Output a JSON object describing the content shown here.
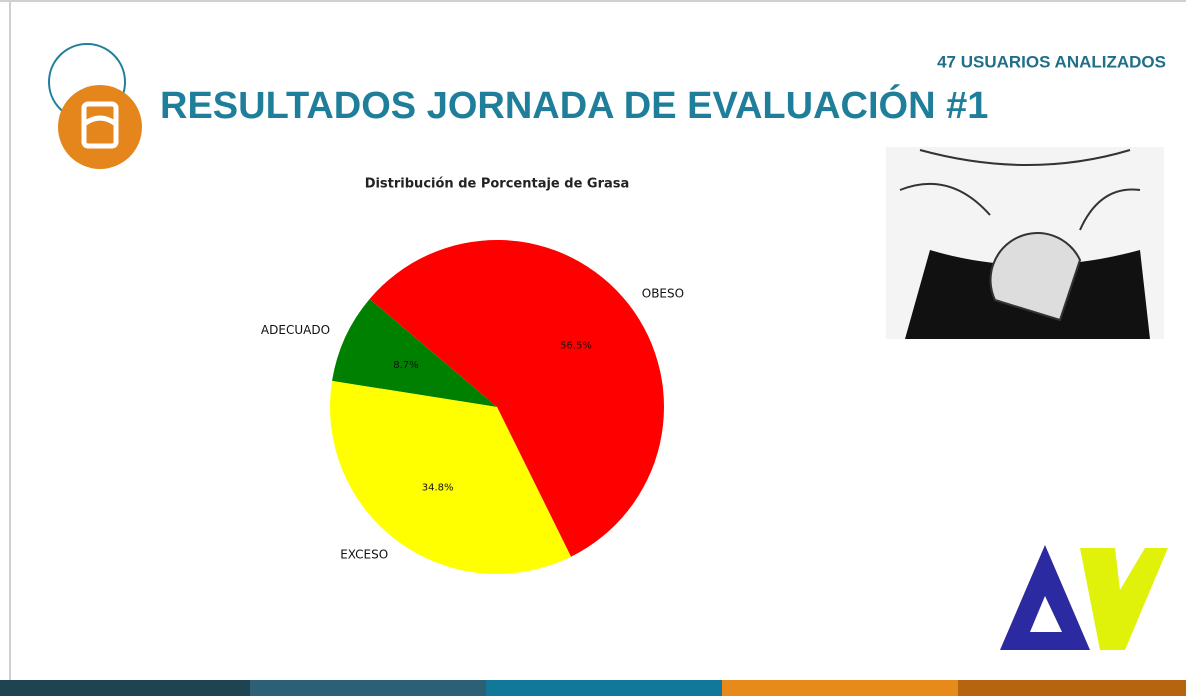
{
  "header": {
    "title": "RESULTADOS JORNADA DE EVALUACIÓN #1",
    "subtitle": "47 USUARIOS ANALIZADOS"
  },
  "chart_data": {
    "type": "pie",
    "title": "Distribución de Porcentaje de Grasa",
    "categories": [
      "OBESO",
      "ADECUADO",
      "EXCESO"
    ],
    "values": [
      56.5,
      8.7,
      34.8
    ],
    "value_labels": [
      "56.5%",
      "8.7%",
      "34.8%"
    ],
    "colors": [
      "#ff0000",
      "#008000",
      "#ffff00"
    ]
  }
}
